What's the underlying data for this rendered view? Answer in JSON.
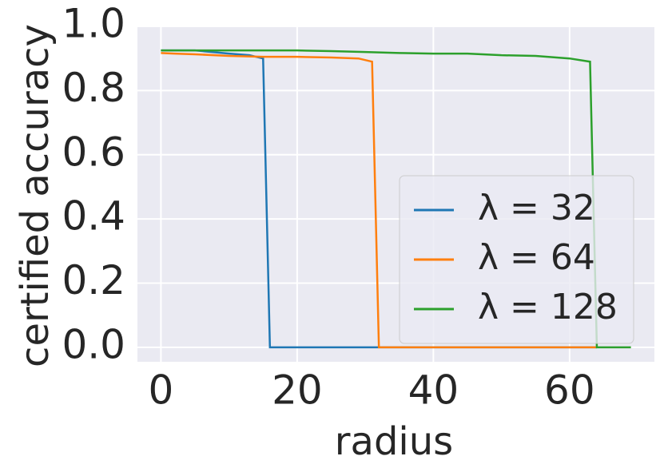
{
  "chart_data": {
    "type": "line",
    "xlabel": "radius",
    "ylabel": "certified accuracy",
    "xlim": [
      -3.45,
      72.45
    ],
    "ylim": [
      -0.045,
      1.0
    ],
    "xticks": [
      0,
      20,
      40,
      60
    ],
    "yticks": [
      {
        "value": 0,
        "label": "0.0"
      },
      0.2,
      0.4,
      0.6,
      0.8,
      {
        "value": 1,
        "label": "1.0"
      }
    ],
    "grid": true,
    "legend": "lower right",
    "series": [
      {
        "name": "λ = 32",
        "color": "#1f77b4",
        "x": [
          0,
          5,
          10,
          13,
          15,
          16,
          64
        ],
        "values": [
          0.925,
          0.925,
          0.915,
          0.91,
          0.9,
          0,
          0
        ]
      },
      {
        "name": "λ = 64",
        "color": "#ff7f0e",
        "x": [
          0,
          2,
          5,
          10,
          15,
          20,
          25,
          29,
          31,
          32,
          64
        ],
        "values": [
          0.917,
          0.915,
          0.913,
          0.908,
          0.905,
          0.905,
          0.903,
          0.9,
          0.89,
          0,
          0
        ]
      },
      {
        "name": "λ = 128",
        "color": "#2ca02c",
        "x": [
          0,
          10,
          20,
          25,
          30,
          35,
          40,
          45,
          50,
          55,
          60,
          63,
          64,
          69
        ],
        "values": [
          0.925,
          0.925,
          0.925,
          0.923,
          0.92,
          0.917,
          0.915,
          0.915,
          0.91,
          0.908,
          0.9,
          0.89,
          0,
          0
        ]
      }
    ]
  }
}
